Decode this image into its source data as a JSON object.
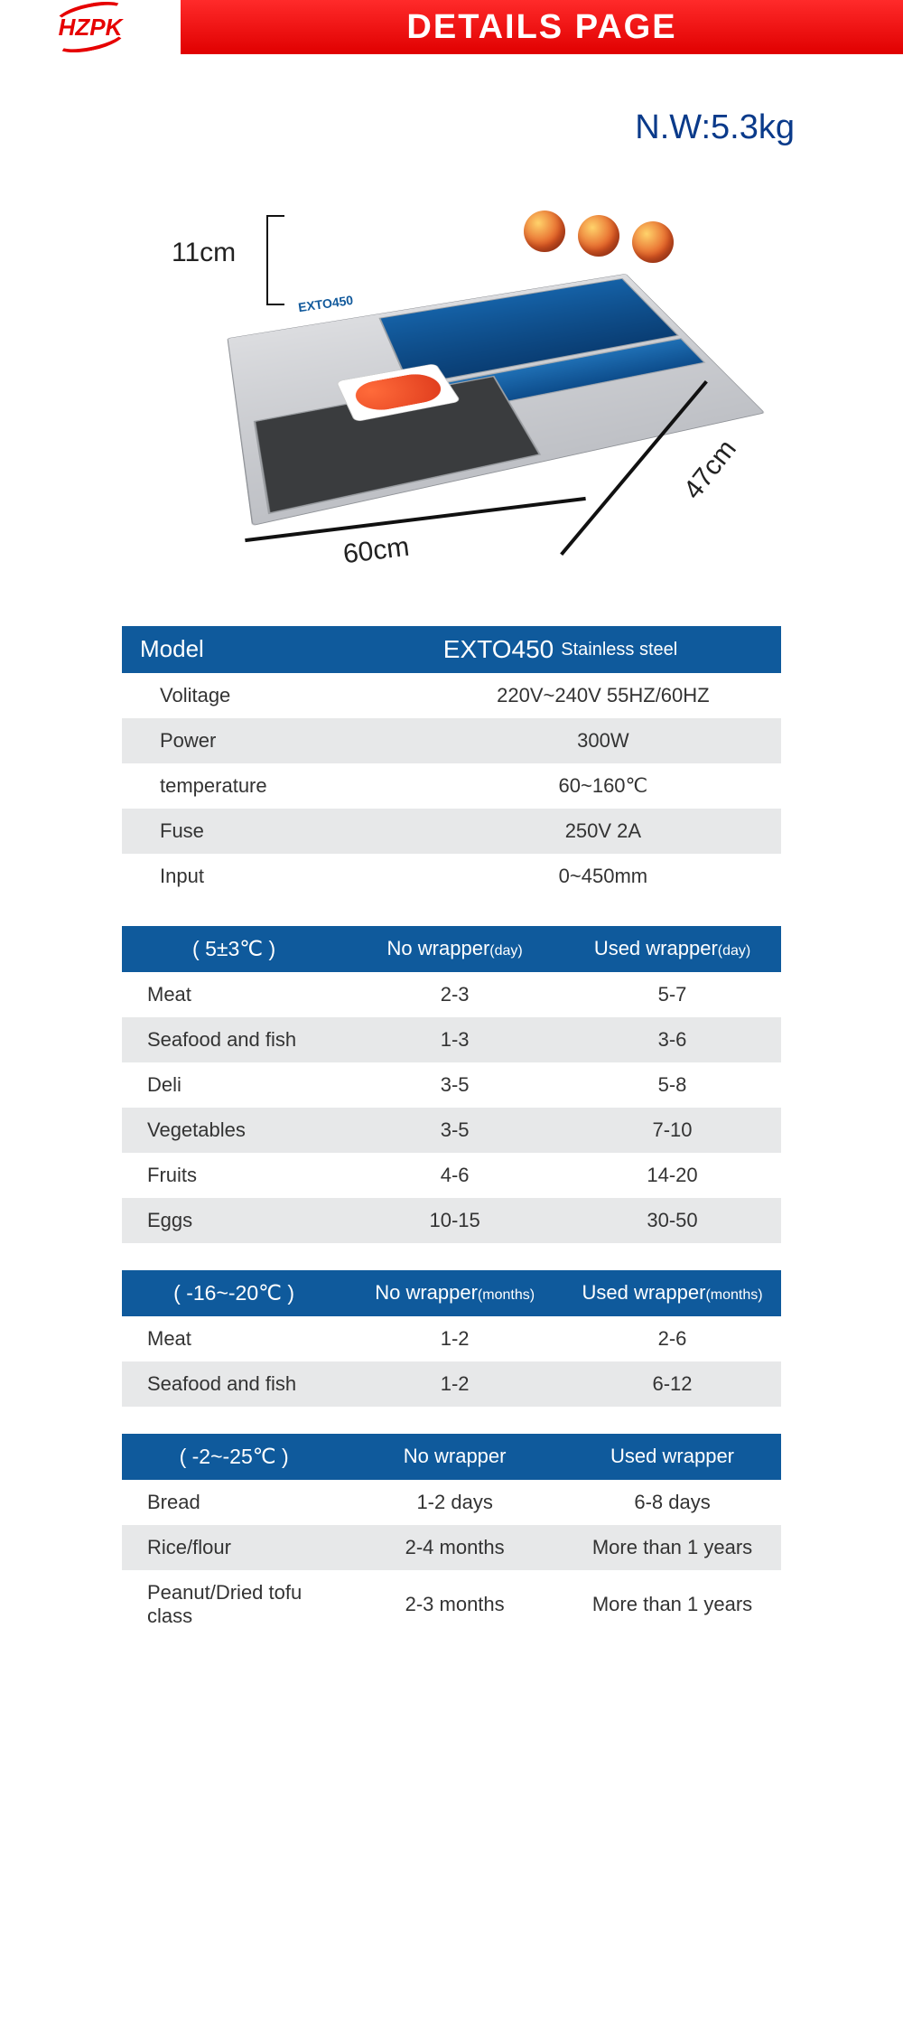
{
  "header": {
    "logo_text": "HZPK",
    "title": "DETAILS PAGE",
    "logo_color": "#e60000",
    "title_bg_from": "#ff2a2a",
    "title_bg_to": "#e00000"
  },
  "weight": {
    "label": "N.W:",
    "value": "5.3kg",
    "color": "#0a3a8a"
  },
  "product_diagram": {
    "model_tag": "EXTO450",
    "dimensions": {
      "height": "11cm",
      "width": "60cm",
      "depth": "47cm"
    },
    "colors": {
      "panel": "#1561a6",
      "base": "#cfd1d5",
      "tray": "#3a3c3e",
      "apple": "#e35a24"
    }
  },
  "spec_table": {
    "header_left": "Model",
    "header_right_main": "EXTO450",
    "header_right_sub": "Stainless steel",
    "rows": [
      {
        "label": "Volitage",
        "value": "220V~240V   55HZ/60HZ"
      },
      {
        "label": "Power",
        "value": "300W"
      },
      {
        "label": "temperature",
        "value": "60~160℃"
      },
      {
        "label": "Fuse",
        "value": "250V  2A"
      },
      {
        "label": "Input",
        "value": "0~450mm"
      }
    ],
    "header_bg": "#0f5a9c",
    "alt_row_bg": "#e7e8e9"
  },
  "storage_tables": [
    {
      "temp_label": "( 5±3℃ )",
      "col2": "No wrapper",
      "col2_unit": "(day)",
      "col3": "Used wrapper",
      "col3_unit": "(day)",
      "rows": [
        {
          "item": "Meat",
          "no": "2-3",
          "used": "5-7"
        },
        {
          "item": "Seafood and fish",
          "no": "1-3",
          "used": "3-6"
        },
        {
          "item": "Deli",
          "no": "3-5",
          "used": "5-8"
        },
        {
          "item": "Vegetables",
          "no": "3-5",
          "used": "7-10"
        },
        {
          "item": "Fruits",
          "no": "4-6",
          "used": "14-20"
        },
        {
          "item": "Eggs",
          "no": "10-15",
          "used": "30-50"
        }
      ]
    },
    {
      "temp_label": "( -16~-20℃ )",
      "col2": "No wrapper",
      "col2_unit": "(months)",
      "col3": "Used wrapper",
      "col3_unit": "(months)",
      "rows": [
        {
          "item": "Meat",
          "no": "1-2",
          "used": "2-6"
        },
        {
          "item": "Seafood and fish",
          "no": "1-2",
          "used": "6-12"
        }
      ]
    },
    {
      "temp_label": "( -2~-25℃ )",
      "col2": "No wrapper",
      "col2_unit": "",
      "col3": "Used wrapper",
      "col3_unit": "",
      "rows": [
        {
          "item": "Bread",
          "no": "1-2 days",
          "used": "6-8 days"
        },
        {
          "item": "Rice/flour",
          "no": "2-4 months",
          "used": "More than 1 years"
        },
        {
          "item": "Peanut/Dried tofu class",
          "no": "2-3 months",
          "used": "More than 1 years"
        }
      ]
    }
  ]
}
